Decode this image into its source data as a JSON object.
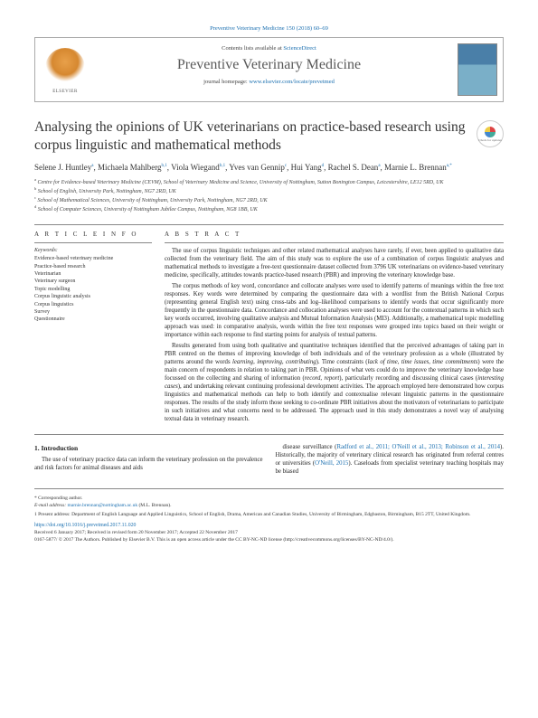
{
  "running_header": "Preventive Veterinary Medicine 150 (2018) 60–69",
  "journal_box": {
    "contents_prefix": "Contents lists available at ",
    "contents_link": "ScienceDirect",
    "journal_name": "Preventive Veterinary Medicine",
    "homepage_prefix": "journal homepage: ",
    "homepage_link": "www.elsevier.com/locate/prevetmed",
    "elsevier_label": "ELSEVIER"
  },
  "check_updates_label": "Check for updates",
  "title": "Analysing the opinions of UK veterinarians on practice-based research using corpus linguistic and mathematical methods",
  "authors_html": "Selene J. Huntley<sup>a</sup>, Michaela Mahlberg<sup>b,1</sup>, Viola Wiegand<sup>b,1</sup>, Yves van Gennip<sup>c</sup>, Hui Yang<sup>d</sup>, Rachel S. Dean<sup>a</sup>, Marnie L. Brennan<sup>a,*</sup>",
  "affiliations": [
    "a|Centre for Evidence-based Veterinary Medicine (CEVM), School of Veterinary Medicine and Science, University of Nottingham, Sutton Bonington Campus, Leicestershire, LE12 5RD, UK",
    "b|School of English, University Park, Nottingham, NG7 2RD, UK",
    "c|School of Mathematical Sciences, University of Nottingham, University Park, Nottingham, NG7 2RD, UK",
    "d|School of Computer Sciences, University of Nottingham Jubilee Campus, Nottingham, NG8 1BB, UK"
  ],
  "article_info_head": "A R T I C L E  I N F O",
  "abstract_head": "A B S T R A C T",
  "keywords_label": "Keywords:",
  "keywords": [
    "Evidence-based veterinary medicine",
    "Practice-based research",
    "Veterinarian",
    "Veterinary surgeon",
    "Topic modelling",
    "Corpus linguistic analysis",
    "Corpus linguistics",
    "Survey",
    "Questionnaire"
  ],
  "abstract_paragraphs": [
    "The use of corpus linguistic techniques and other related mathematical analyses have rarely, if ever, been applied to qualitative data collected from the veterinary field. The aim of this study was to explore the use of a combination of corpus linguistic analyses and mathematical methods to investigate a free-text questionnaire dataset collected from 3796 UK veterinarians on evidence-based veterinary medicine, specifically, attitudes towards practice-based research (PBR) and improving the veterinary knowledge base.",
    "The corpus methods of key word, concordance and collocate analyses were used to identify patterns of meanings within the free text responses. Key words were determined by comparing the questionnaire data with a wordlist from the British National Corpus (representing general English text) using cross-tabs and log–likelihood comparisons to identify words that occur significantly more frequently in the questionnaire data. Concordance and collocation analyses were used to account for the contextual patterns in which such key words occurred, involving qualitative analysis and Mutual Information Analysis (MI3). Additionally, a mathematical topic modelling approach was used: in comparative analysis, words within the free text responses were grouped into topics based on their weight or importance within each response to find starting points for analysis of textual patterns.",
    "Results generated from using both qualitative and quantitative techniques identified that the perceived advantages of taking part in PBR centred on the themes of improving knowledge of both individuals and of the veterinary profession as a whole (illustrated by patterns around the words <em>learning, improving, contributing</em>). Time constraints (<em>lack of time, time issues, time commitments</em>) were the main concern of respondents in relation to taking part in PBR. Opinions of what vets could do to improve the veterinary knowledge base focussed on the collecting and sharing of information (<em>record, report</em>), particularly recording and discussing clinical cases (<em>interesting cases</em>), and undertaking relevant continuing professional development activities. The approach employed here demonstrated how corpus linguistics and mathematical methods can help to both identify and contextualise relevant linguistic patterns in the questionnaire responses. The results of the study inform those seeking to co-ordinate PBR initiatives about the motivators of veterinarians to participate in such initiatives and what concerns need to be addressed. The approach used in this study demonstrates a novel way of analysing textual data in veterinary research."
  ],
  "intro_head": "1. Introduction",
  "intro_col1": "The use of veterinary practice data can inform the veterinary profession on the prevalence and risk factors for animal diseases and aids",
  "intro_col2_pre": "disease surveillance (",
  "intro_col2_cite": "Radford et al., 2011; O'Neill et al., 2013; Robinson et al., 2014",
  "intro_col2_post1": "). Historically, the majority of veterinary clinical research has originated from referral centres or universities (",
  "intro_col2_cite2": "O'Neill, 2015",
  "intro_col2_post2": "). Caseloads from specialist veterinary teaching hospitals may be biased",
  "footnotes": {
    "corr_label": "* Corresponding author.",
    "email_label": "E-mail address: ",
    "email": "marnie.brennan@nottingham.ac.uk",
    "email_who": " (M.L. Brennan).",
    "present_label": "1 Present address: Department of English Language and Applied Linguistics, School of English, Drama, American and Canadian Studies, University of Birmingham, Edgbaston, Birmingham, B15 2TT, United Kingdom."
  },
  "doi": "https://doi.org/10.1016/j.prevetmed.2017.11.020",
  "received": "Received 6 January 2017; Received in revised form 20 November 2017; Accepted 22 November 2017",
  "copyright": "0167-5877/ © 2017 The Authors. Published by Elsevier B.V. This is an open access article under the CC BY-NC-ND license (http://creativecommons.org/licenses/BY-NC-ND/4.0/).",
  "colors": {
    "link": "#1a6fb0",
    "text": "#222222",
    "rule": "#888888"
  }
}
